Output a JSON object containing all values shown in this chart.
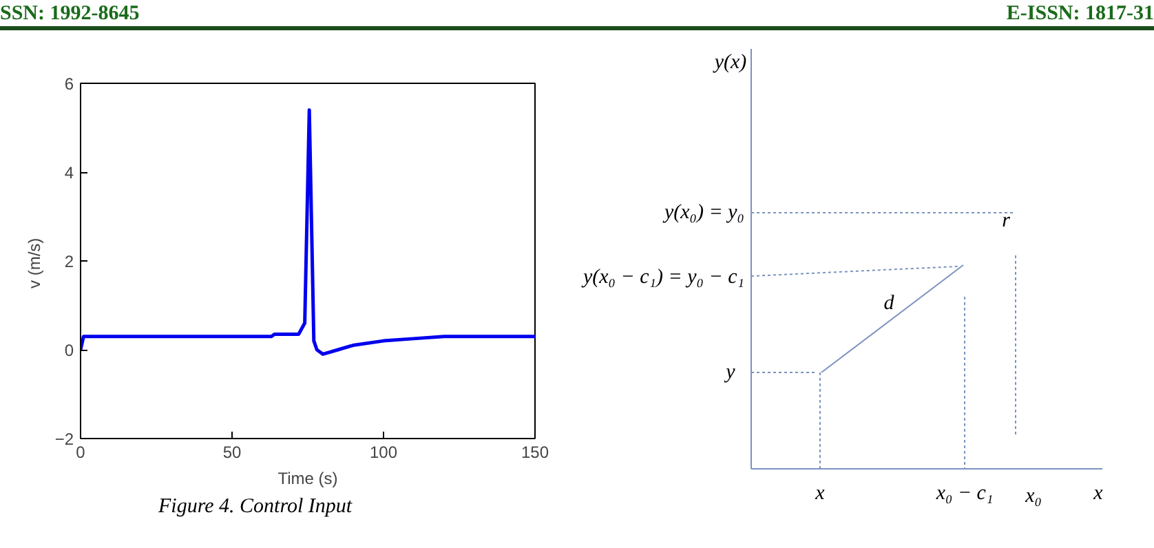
{
  "chart_data": [
    {
      "type": "line",
      "xlabel": "Time (s)",
      "ylabel": "v  (m/s)",
      "annotations": [
        "SSN: 1992-8645",
        "E-ISSN: 1817-31",
        "Figure 4. Control Input"
      ],
      "x": [
        0,
        1,
        63,
        64,
        72,
        74,
        75.5,
        77,
        78,
        80,
        85,
        90,
        100,
        110,
        120,
        150
      ],
      "series": [
        {
          "color": "#0000ee",
          "values": [
            0,
            0.3,
            0.3,
            0.35,
            0.35,
            0.6,
            5.4,
            0.2,
            0,
            -0.1,
            0,
            0.1,
            0.2,
            0.25,
            0.3,
            0.3
          ]
        }
      ],
      "xlim": [
        0,
        150
      ],
      "ylim": [
        -2,
        6
      ],
      "xticks": [
        0,
        50,
        100,
        150
      ],
      "yticks": [
        -2,
        0,
        2,
        4,
        6
      ],
      "grid": false
    },
    {
      "type": "other",
      "annotations": [
        "y(x)",
        "y(x₀) = y₀",
        "y(x₀ − c₁) = y₀ − c₁",
        "y",
        "d",
        "r",
        "x",
        "x₀ − c₁",
        "x₀",
        "x"
      ]
    }
  ]
}
